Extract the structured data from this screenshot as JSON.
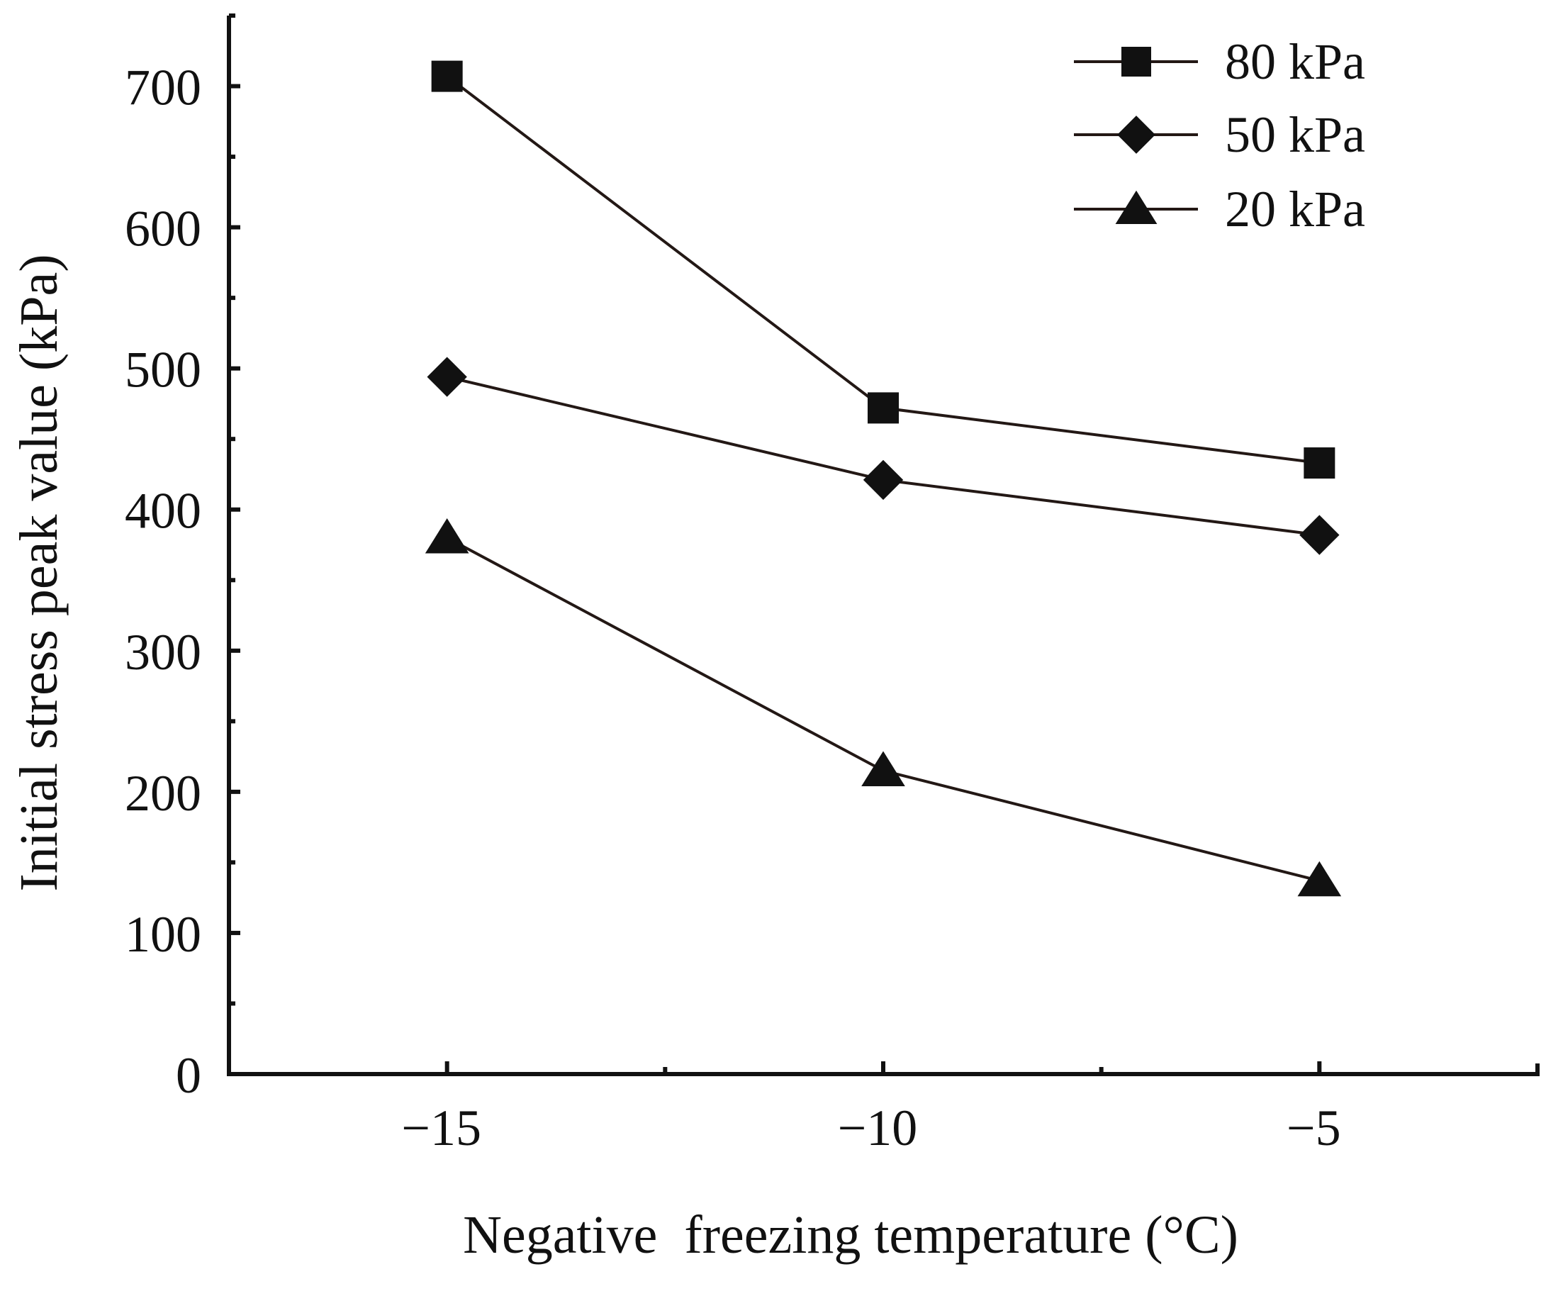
{
  "chart_data": {
    "type": "line",
    "title": "",
    "xlabel": "Negative  freezing temperature (°C)",
    "ylabel": "Initial stress peak value (kPa)",
    "x": [
      -15,
      -10,
      -5
    ],
    "xlim": [
      -17.5,
      -2.5
    ],
    "ylim": [
      0,
      750
    ],
    "x_ticks": [
      -15,
      -10,
      -5
    ],
    "x_tick_labels": [
      "−15",
      "−10",
      "−5"
    ],
    "x_minor_ticks": [
      -12.5,
      -7.5
    ],
    "y_ticks": [
      0,
      100,
      200,
      300,
      400,
      500,
      600,
      700
    ],
    "y_tick_labels": [
      "0",
      "100",
      "200",
      "300",
      "400",
      "500",
      "600",
      "700"
    ],
    "y_minor_ticks": [
      50,
      150,
      250,
      350,
      450,
      550,
      650,
      750
    ],
    "grid": false,
    "legend_position": "top-right",
    "series": [
      {
        "name": "80 kPa",
        "marker": "square",
        "values": [
          707,
          472,
          433
        ]
      },
      {
        "name": "50 kPa",
        "marker": "diamond",
        "values": [
          494,
          421,
          382
        ]
      },
      {
        "name": "20 kPa",
        "marker": "triangle",
        "values": [
          380,
          215,
          137
        ]
      }
    ],
    "colors": {
      "line": "#231815",
      "marker": "#111111",
      "axis": "#111111"
    }
  }
}
